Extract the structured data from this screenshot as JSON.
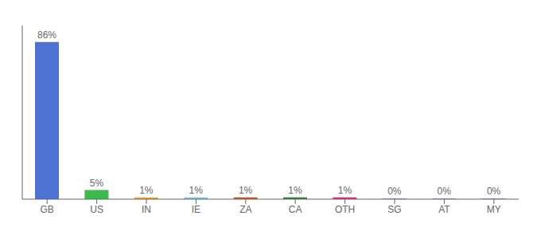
{
  "chart_data": {
    "type": "bar",
    "categories": [
      "GB",
      "US",
      "IN",
      "IE",
      "ZA",
      "CA",
      "OTH",
      "SG",
      "AT",
      "MY"
    ],
    "values": [
      86,
      5,
      1,
      1,
      1,
      1,
      1,
      0.3,
      0.3,
      0.3
    ],
    "value_labels": [
      "86%",
      "5%",
      "1%",
      "1%",
      "1%",
      "1%",
      "1%",
      "0%",
      "0%",
      "0%"
    ],
    "data_labels": true,
    "colors": [
      "#4d72d1",
      "#3dba4e",
      "#f5a623",
      "#7ec8e3",
      "#c0572a",
      "#2e7d32",
      "#e91e8c",
      "#4d72d1",
      "#4d72d1",
      "#4d72d1"
    ],
    "ylim": [
      0,
      95
    ],
    "tick_labels": "x",
    "grid": false
  }
}
